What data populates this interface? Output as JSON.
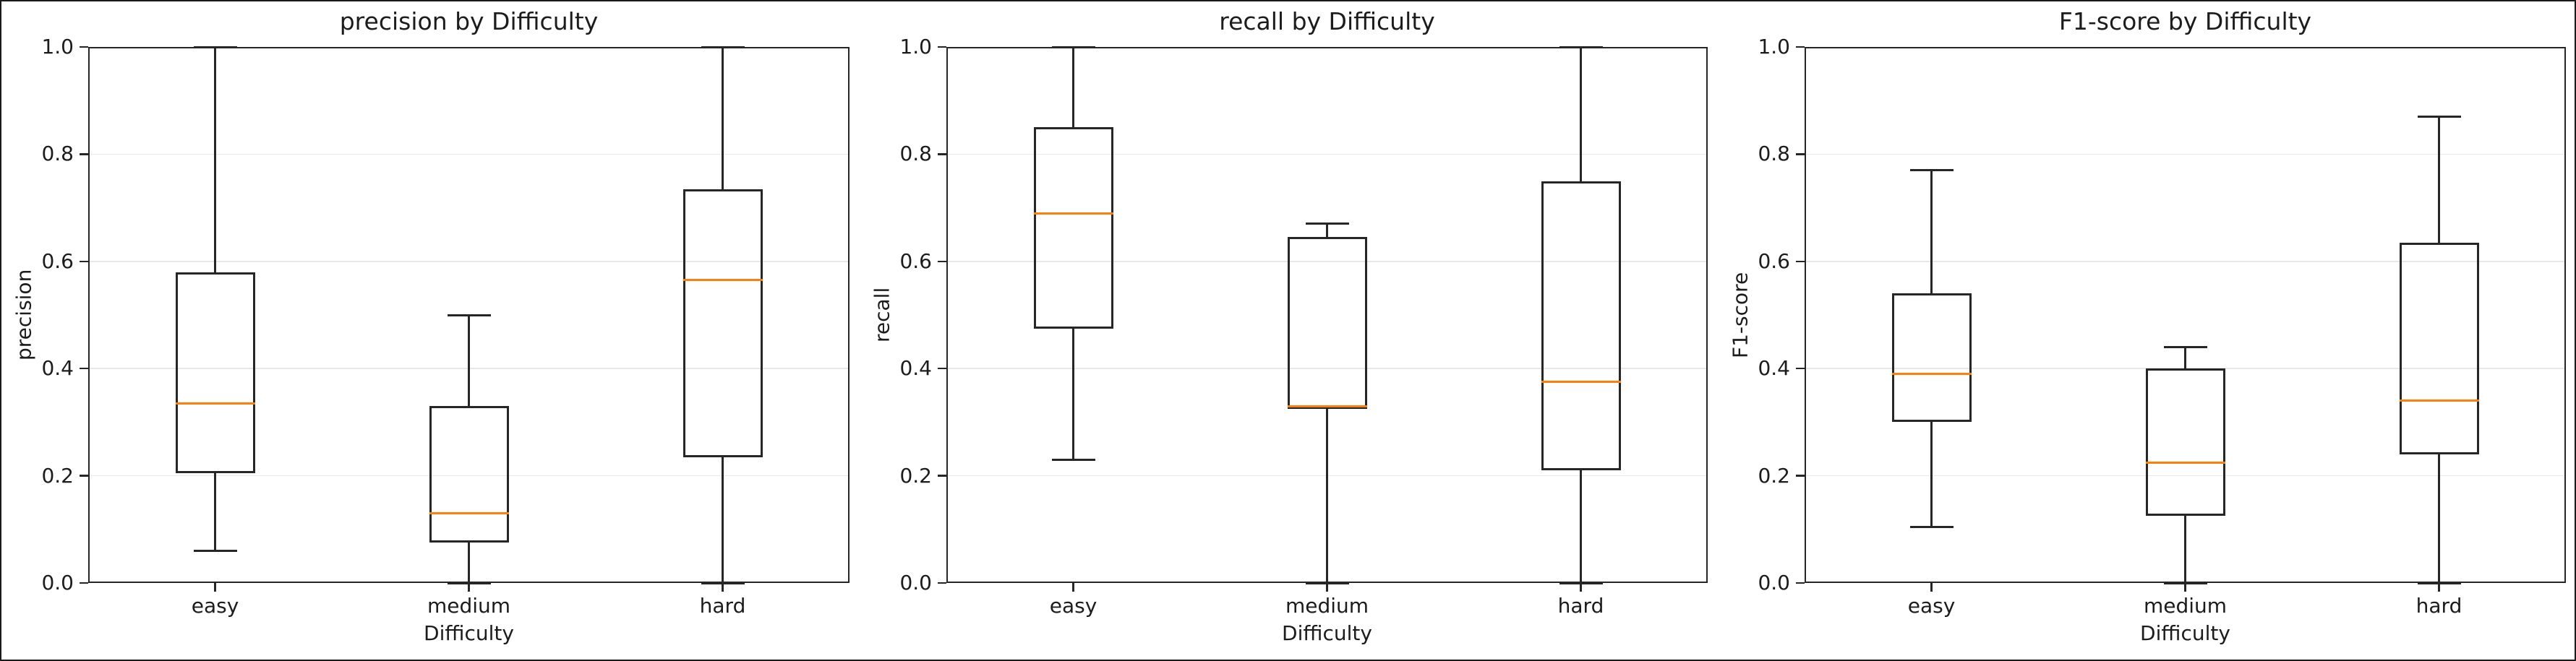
{
  "figure": {
    "background": "#ffffff",
    "border_color": "#1a1a1a",
    "line_color": "#262626",
    "median_color": "#ff7f0e",
    "grid_color": "#e8e8e8",
    "text_color": "#1c1c1c"
  },
  "chart_data": [
    {
      "type": "boxplot",
      "title": "precision by Difficulty",
      "xlabel": "Difficulty",
      "ylabel": "precision",
      "ylim": [
        0.0,
        1.0
      ],
      "grid": "horizontal-light",
      "legend": "none",
      "yticks": [
        {
          "value": 0.0,
          "label": "0.0"
        },
        {
          "value": 0.2,
          "label": "0.2"
        },
        {
          "value": 0.4,
          "label": "0.4"
        },
        {
          "value": 0.6,
          "label": "0.6"
        },
        {
          "value": 0.8,
          "label": "0.8"
        },
        {
          "value": 1.0,
          "label": "1.0"
        }
      ],
      "categories": [
        "easy",
        "medium",
        "hard"
      ],
      "series": [
        {
          "category": "easy",
          "whisker_low": 0.06,
          "q1": 0.205,
          "median": 0.335,
          "q3": 0.58,
          "whisker_high": 1.0
        },
        {
          "category": "medium",
          "whisker_low": 0.0,
          "q1": 0.075,
          "median": 0.13,
          "q3": 0.33,
          "whisker_high": 0.5
        },
        {
          "category": "hard",
          "whisker_low": 0.0,
          "q1": 0.235,
          "median": 0.565,
          "q3": 0.735,
          "whisker_high": 1.0
        }
      ]
    },
    {
      "type": "boxplot",
      "title": "recall by Difficulty",
      "xlabel": "Difficulty",
      "ylabel": "recall",
      "ylim": [
        0.0,
        1.0
      ],
      "grid": "horizontal-light",
      "legend": "none",
      "yticks": [
        {
          "value": 0.0,
          "label": "0.0"
        },
        {
          "value": 0.2,
          "label": "0.2"
        },
        {
          "value": 0.4,
          "label": "0.4"
        },
        {
          "value": 0.6,
          "label": "0.6"
        },
        {
          "value": 0.8,
          "label": "0.8"
        },
        {
          "value": 1.0,
          "label": "1.0"
        }
      ],
      "categories": [
        "easy",
        "medium",
        "hard"
      ],
      "series": [
        {
          "category": "easy",
          "whisker_low": 0.23,
          "q1": 0.475,
          "median": 0.69,
          "q3": 0.85,
          "whisker_high": 1.0
        },
        {
          "category": "medium",
          "whisker_low": 0.0,
          "q1": 0.325,
          "median": 0.33,
          "q3": 0.645,
          "whisker_high": 0.67
        },
        {
          "category": "hard",
          "whisker_low": 0.0,
          "q1": 0.21,
          "median": 0.375,
          "q3": 0.75,
          "whisker_high": 1.0
        }
      ]
    },
    {
      "type": "boxplot",
      "title": "F1-score by Difficulty",
      "xlabel": "Difficulty",
      "ylabel": "F1-score",
      "ylim": [
        0.0,
        1.0
      ],
      "grid": "horizontal-light",
      "legend": "none",
      "yticks": [
        {
          "value": 0.0,
          "label": "0.0"
        },
        {
          "value": 0.2,
          "label": "0.2"
        },
        {
          "value": 0.4,
          "label": "0.4"
        },
        {
          "value": 0.6,
          "label": "0.6"
        },
        {
          "value": 0.8,
          "label": "0.8"
        },
        {
          "value": 1.0,
          "label": "1.0"
        }
      ],
      "categories": [
        "easy",
        "medium",
        "hard"
      ],
      "series": [
        {
          "category": "easy",
          "whisker_low": 0.105,
          "q1": 0.3,
          "median": 0.39,
          "q3": 0.54,
          "whisker_high": 0.77
        },
        {
          "category": "medium",
          "whisker_low": 0.0,
          "q1": 0.125,
          "median": 0.225,
          "q3": 0.4,
          "whisker_high": 0.44
        },
        {
          "category": "hard",
          "whisker_low": 0.0,
          "q1": 0.24,
          "median": 0.34,
          "q3": 0.635,
          "whisker_high": 0.87
        }
      ]
    }
  ]
}
